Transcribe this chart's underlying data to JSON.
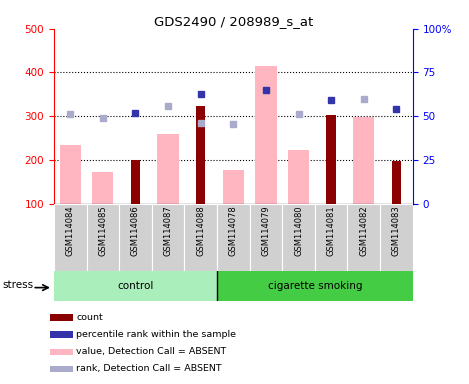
{
  "title": "GDS2490 / 208989_s_at",
  "samples": [
    "GSM114084",
    "GSM114085",
    "GSM114086",
    "GSM114087",
    "GSM114088",
    "GSM114078",
    "GSM114079",
    "GSM114080",
    "GSM114081",
    "GSM114082",
    "GSM114083"
  ],
  "value_absent": [
    235,
    172,
    null,
    260,
    null,
    177,
    415,
    222,
    null,
    298,
    null
  ],
  "count": [
    null,
    null,
    200,
    null,
    323,
    null,
    null,
    null,
    303,
    null,
    198
  ],
  "percentile_rank": [
    null,
    null,
    308,
    null,
    350,
    null,
    360,
    null,
    338,
    null,
    317
  ],
  "rank_absent": [
    305,
    295,
    null,
    323,
    285,
    283,
    null,
    305,
    null,
    340,
    null
  ],
  "ylim_left": [
    100,
    500
  ],
  "ylim_right": [
    0,
    100
  ],
  "yticks_left": [
    100,
    200,
    300,
    400,
    500
  ],
  "yticks_right": [
    0,
    25,
    50,
    75,
    100
  ],
  "ytick_labels_right": [
    "0",
    "25",
    "50",
    "75",
    "100%"
  ],
  "grid_lines": [
    200,
    300,
    400
  ],
  "bar_color_absent": "#FFB6C1",
  "bar_color_count": "#8B0000",
  "dot_color_rank": "#3333AA",
  "dot_color_rank_absent": "#AAAACC",
  "control_color": "#AAEEBB",
  "smoking_color": "#44CC44",
  "stress_label": "stress",
  "n_control": 5,
  "n_smoking": 6
}
